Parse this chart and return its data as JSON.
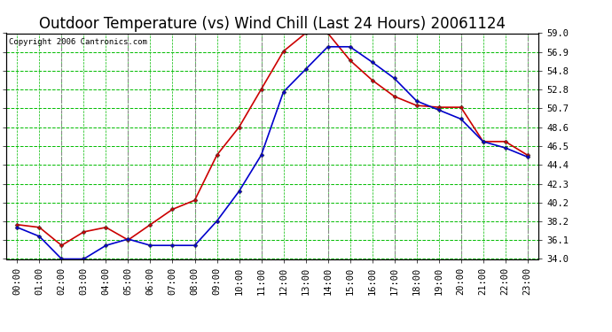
{
  "title": "Outdoor Temperature (vs) Wind Chill (Last 24 Hours) 20061124",
  "copyright": "Copyright 2006 Cantronics.com",
  "hours": [
    "00:00",
    "01:00",
    "02:00",
    "03:00",
    "04:00",
    "05:00",
    "06:00",
    "07:00",
    "08:00",
    "09:00",
    "10:00",
    "11:00",
    "12:00",
    "13:00",
    "14:00",
    "15:00",
    "16:00",
    "17:00",
    "18:00",
    "19:00",
    "20:00",
    "21:00",
    "22:00",
    "23:00"
  ],
  "temp": [
    37.8,
    37.5,
    35.5,
    37.0,
    37.5,
    36.1,
    37.8,
    39.5,
    40.5,
    45.5,
    48.6,
    52.8,
    57.0,
    59.0,
    59.0,
    56.0,
    53.8,
    52.0,
    51.0,
    50.8,
    50.8,
    47.0,
    47.0,
    45.5
  ],
  "wind_chill": [
    37.5,
    36.5,
    34.0,
    34.0,
    35.5,
    36.2,
    35.5,
    35.5,
    35.5,
    38.2,
    41.5,
    45.5,
    52.5,
    55.0,
    57.5,
    57.5,
    55.8,
    54.0,
    51.5,
    50.5,
    49.5,
    47.0,
    46.3,
    45.3
  ],
  "ylim": [
    34.0,
    59.0
  ],
  "yticks": [
    34.0,
    36.1,
    38.2,
    40.2,
    42.3,
    44.4,
    46.5,
    48.6,
    50.7,
    52.8,
    54.8,
    56.9,
    59.0
  ],
  "ytick_labels": [
    "34.0",
    "36.1",
    "38.2",
    "40.2",
    "42.3",
    "44.4",
    "46.5",
    "48.6",
    "50.7",
    "52.8",
    "54.8",
    "56.9",
    "59.0"
  ],
  "temp_color": "#cc0000",
  "wind_chill_color": "#0000cc",
  "bg_color": "#ffffff",
  "plot_bg_color": "#ffffff",
  "grid_h_color": "#00bb00",
  "grid_v_color": "#888888",
  "title_fontsize": 12,
  "tick_fontsize": 7.5,
  "marker": "D",
  "marker_size": 2.5,
  "line_width": 1.2,
  "vgrid_positions": [
    0,
    1,
    2,
    3,
    4,
    5,
    6,
    7,
    8,
    9,
    10,
    11,
    12,
    13,
    14,
    15,
    16,
    17,
    18,
    19,
    20,
    21,
    22,
    23
  ],
  "vgrid_gray_positions": [
    2,
    5,
    8,
    11,
    14,
    17,
    20,
    23
  ]
}
